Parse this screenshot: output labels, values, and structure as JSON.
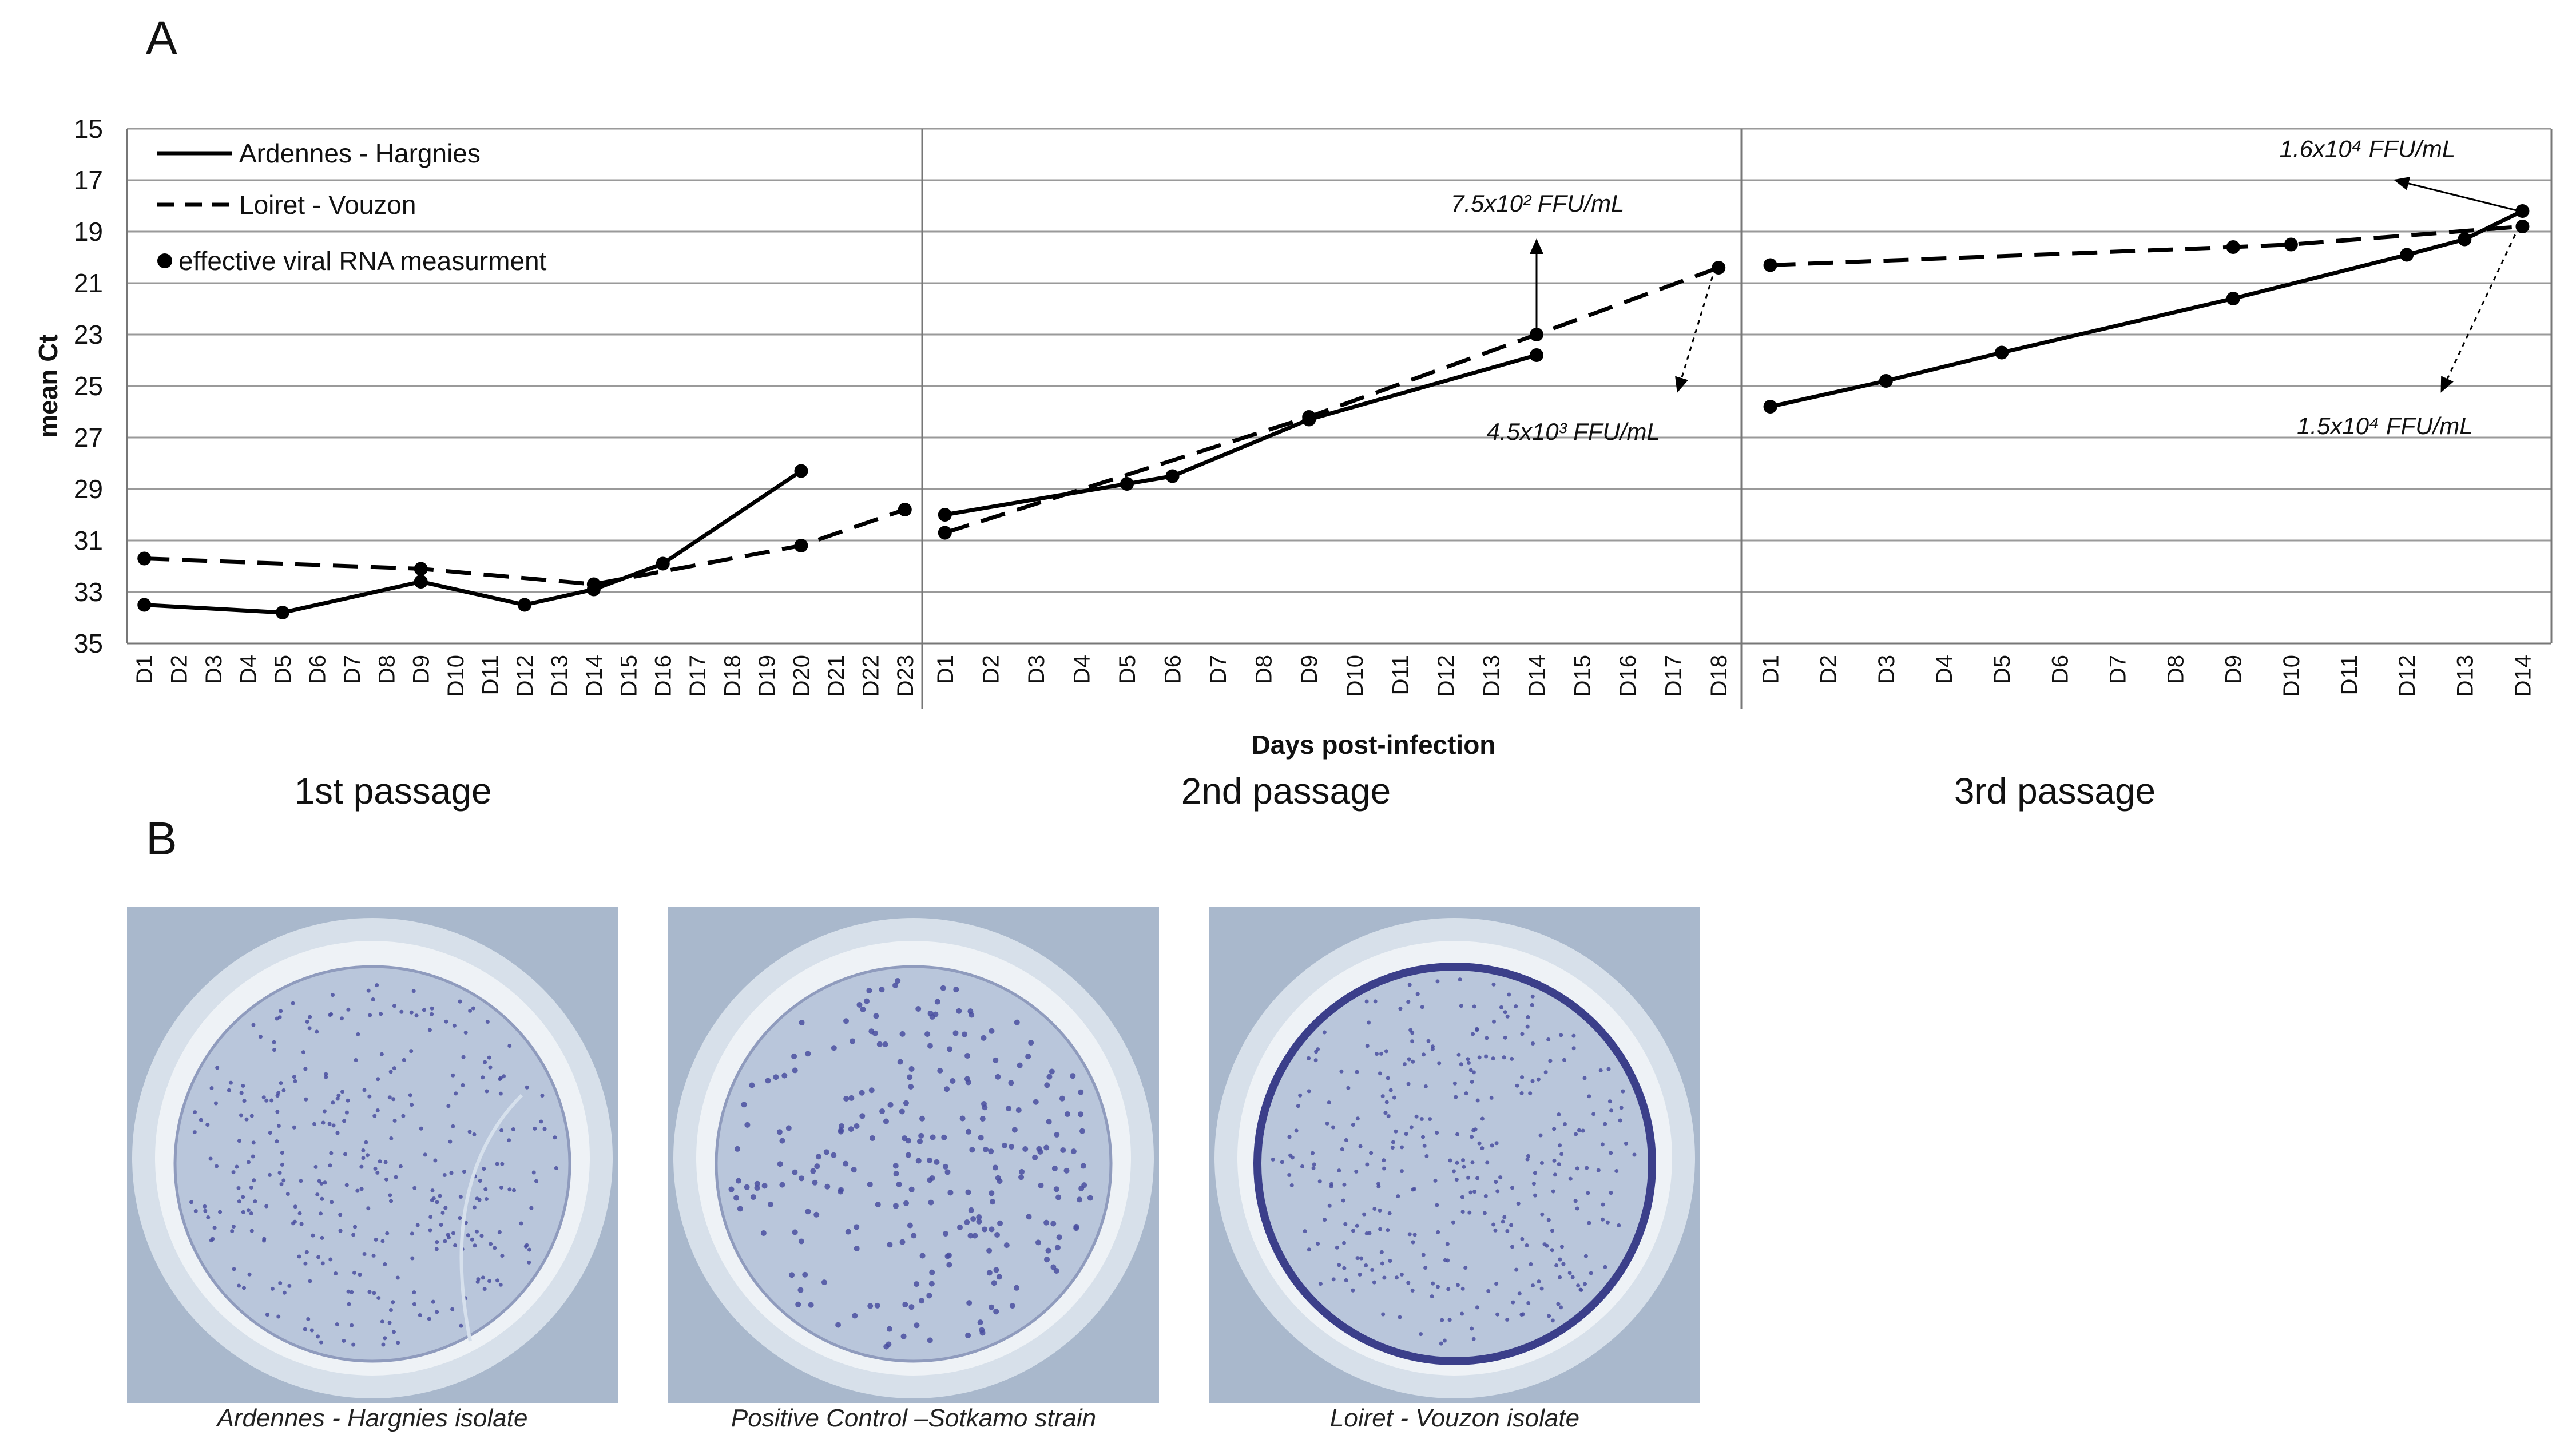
{
  "panel_labels": {
    "a": "A",
    "b": "B"
  },
  "colors": {
    "line": "#000000",
    "grid": "#9a9a9a",
    "dish_rim": "#d7e0ea",
    "dish_inner": "#b9c6db",
    "spot": "#4a4fa0"
  },
  "chart_data": {
    "type": "line",
    "ylabel": "mean Ct",
    "xlabel": "Days post-infection",
    "ylim": [
      35,
      15
    ],
    "y_inverted": true,
    "yticks": [
      15,
      17,
      19,
      21,
      23,
      25,
      27,
      29,
      31,
      33,
      35
    ],
    "grid": true,
    "legend_position": "top-left",
    "legend": [
      {
        "label": "Ardennes - Hargnies",
        "style": "solid"
      },
      {
        "label": "Loiret - Vouzon",
        "style": "dashed"
      },
      {
        "label": "effective viral RNA measurment",
        "style": "marker"
      }
    ],
    "panels": [
      {
        "title": "1st passage",
        "categories": [
          "D1",
          "D2",
          "D3",
          "D4",
          "D5",
          "D6",
          "D7",
          "D8",
          "D9",
          "D10",
          "D11",
          "D12",
          "D13",
          "D14",
          "D15",
          "D16",
          "D17",
          "D18",
          "D19",
          "D20",
          "D21",
          "D22",
          "D23"
        ],
        "series": [
          {
            "name": "Ardennes - Hargnies",
            "style": "solid",
            "x": [
              1,
              5,
              9,
              12,
              14,
              16,
              20
            ],
            "y": [
              33.5,
              33.8,
              32.6,
              33.5,
              32.9,
              31.9,
              28.3
            ]
          },
          {
            "name": "Loiret - Vouzon",
            "style": "dashed",
            "x": [
              1,
              9,
              14,
              20,
              23
            ],
            "y": [
              31.7,
              32.1,
              32.7,
              31.2,
              29.8
            ]
          }
        ],
        "annotations": []
      },
      {
        "title": "2nd passage",
        "categories": [
          "D1",
          "D2",
          "D3",
          "D4",
          "D5",
          "D6",
          "D7",
          "D8",
          "D9",
          "D10",
          "D11",
          "D12",
          "D13",
          "D14",
          "D15",
          "D16",
          "D17",
          "D18"
        ],
        "series": [
          {
            "name": "Ardennes - Hargnies",
            "style": "solid",
            "x": [
              1,
              5,
              6,
              9,
              14
            ],
            "y": [
              30.0,
              28.8,
              28.5,
              26.3,
              23.8
            ]
          },
          {
            "name": "Loiret - Vouzon",
            "style": "dashed",
            "x": [
              1,
              9,
              14,
              18
            ],
            "y": [
              30.7,
              26.2,
              23.0,
              20.4
            ]
          }
        ],
        "annotations": [
          {
            "text": "7.5x10² FFU/mL",
            "arrow": "solid",
            "day": 14,
            "ct": 23.0
          },
          {
            "text": "4.5x10³ FFU/mL",
            "arrow": "dotted",
            "day": 18,
            "ct": 20.4
          }
        ]
      },
      {
        "title": "3rd passage",
        "categories": [
          "D1",
          "D2",
          "D3",
          "D4",
          "D5",
          "D6",
          "D7",
          "D8",
          "D9",
          "D10",
          "D11",
          "D12",
          "D13",
          "D14"
        ],
        "series": [
          {
            "name": "Ardennes - Hargnies",
            "style": "solid",
            "x": [
              1,
              3,
              5,
              9,
              12,
              13,
              14
            ],
            "y": [
              25.8,
              24.8,
              23.7,
              21.6,
              19.9,
              19.3,
              18.2
            ]
          },
          {
            "name": "Loiret - Vouzon",
            "style": "dashed",
            "x": [
              1,
              9,
              10,
              14
            ],
            "y": [
              20.3,
              19.6,
              19.5,
              18.8
            ]
          }
        ],
        "annotations": [
          {
            "text": "1.6x10⁴ FFU/mL",
            "arrow": "solid",
            "day": 14,
            "ct": 18.2
          },
          {
            "text": "1.5x10⁴ FFU/mL",
            "arrow": "dotted",
            "day": 14,
            "ct": 18.8
          }
        ]
      }
    ]
  },
  "photos": [
    {
      "caption": "Ardennes - Hargnies isolate",
      "icon": "plaque-well-ardennes"
    },
    {
      "caption": "Positive Control –Sotkamo strain",
      "icon": "plaque-well-sotkamo"
    },
    {
      "caption": "Loiret - Vouzon isolate",
      "icon": "plaque-well-loiret"
    }
  ]
}
